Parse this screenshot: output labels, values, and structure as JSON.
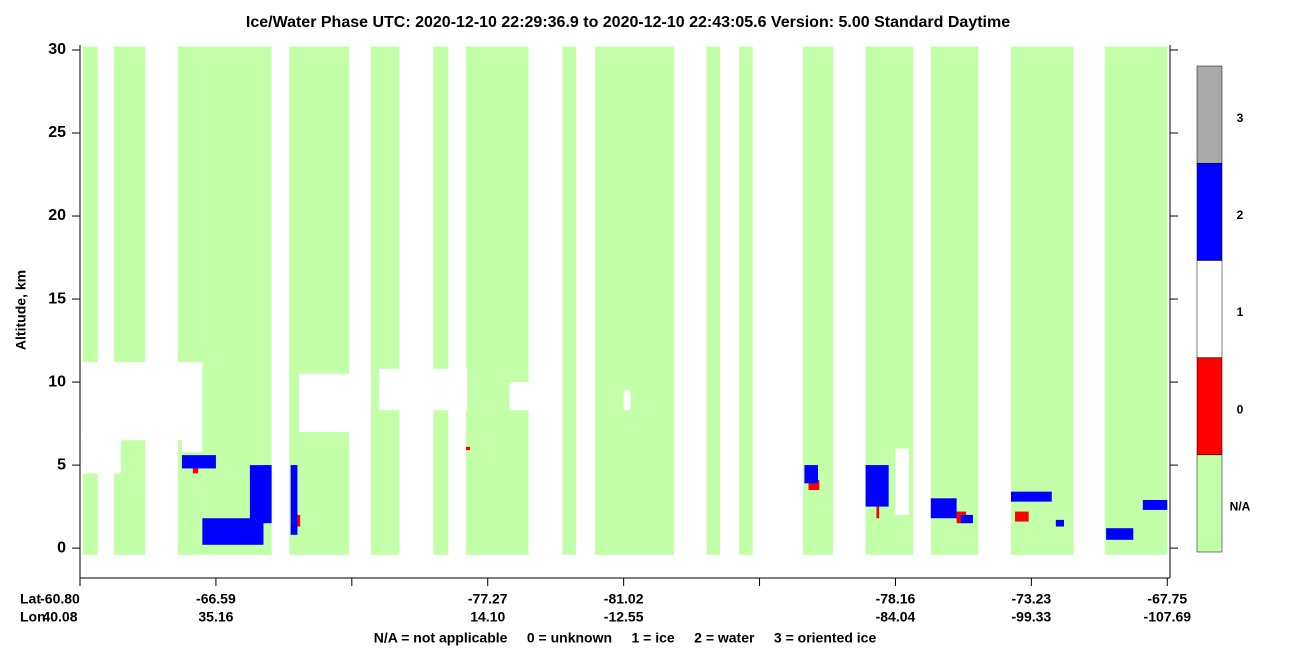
{
  "chart_data": {
    "type": "curtain",
    "title": "Ice/Water Phase    UTC:  2020-12-10    22:29:36.9  to  2020-12-10    22:43:05.6    Version: 5.00  Standard Daytime",
    "y_label": "Altitude, km",
    "ylim": [
      -1.8,
      30.3
    ],
    "yticks": [
      0,
      5,
      10,
      15,
      20,
      25,
      30
    ],
    "xlim": [
      0,
      8.02
    ],
    "xticks": [
      0,
      1,
      2,
      3,
      4,
      5,
      6,
      7,
      8
    ],
    "lat_label": "Lat",
    "lon_label": "Lon",
    "lat": [
      "-60.80",
      "-66.59",
      null,
      "-77.27",
      "-81.02",
      null,
      "-78.16",
      "-73.23",
      "-67.75"
    ],
    "lon": [
      "40.08",
      "35.16",
      null,
      "14.10",
      "-12.55",
      null,
      "-84.04",
      "-99.33",
      "-107.69"
    ],
    "footnote": "N/A = not applicable     0 = unknown     1 = ice     2 = water     3 = oriented ice",
    "series": [
      {
        "name": "N/A",
        "color": "#c2ffa8",
        "rects": [
          [
            0.02,
            0.13,
            -0.4,
            30.2
          ],
          [
            0.25,
            0.48,
            -0.4,
            30.2
          ],
          [
            0.72,
            1.41,
            -0.4,
            30.2
          ],
          [
            1.54,
            1.98,
            -0.4,
            30.2
          ],
          [
            2.14,
            2.35,
            -0.4,
            30.2
          ],
          [
            2.6,
            2.71,
            -0.4,
            30.2
          ],
          [
            2.84,
            3.3,
            -0.4,
            30.2
          ],
          [
            3.55,
            3.65,
            -0.4,
            30.2
          ],
          [
            3.79,
            4.37,
            -0.4,
            30.2
          ],
          [
            4.61,
            4.71,
            -0.4,
            30.2
          ],
          [
            4.85,
            4.95,
            -0.4,
            30.2
          ],
          [
            5.32,
            5.54,
            -0.4,
            30.2
          ],
          [
            5.78,
            6.13,
            -0.4,
            30.2
          ],
          [
            6.26,
            6.61,
            -0.4,
            30.2
          ],
          [
            6.85,
            7.31,
            -0.4,
            30.2
          ],
          [
            7.54,
            8.0,
            -0.4,
            30.2
          ]
        ]
      },
      {
        "name": "0",
        "color": "#ff0000",
        "rects": [
          [
            0.83,
            0.87,
            4.5,
            5.2
          ],
          [
            1.58,
            1.62,
            1.3,
            2.0
          ],
          [
            5.36,
            5.44,
            3.5,
            4.1
          ],
          [
            5.86,
            5.88,
            1.8,
            2.5
          ],
          [
            6.45,
            6.52,
            1.5,
            2.2
          ],
          [
            6.88,
            6.98,
            1.6,
            2.2
          ],
          [
            2.84,
            2.87,
            5.9,
            6.1
          ]
        ]
      },
      {
        "name": "1",
        "color": "#ffffff",
        "rects": [
          [
            0.02,
            0.9,
            6.5,
            11.2
          ],
          [
            0.02,
            0.3,
            4.5,
            7.0
          ],
          [
            0.75,
            0.9,
            5.8,
            7.0
          ],
          [
            1.61,
            2.14,
            7.0,
            10.5
          ],
          [
            2.2,
            2.85,
            8.3,
            10.8
          ],
          [
            3.16,
            3.35,
            8.3,
            10.0
          ],
          [
            4.0,
            4.05,
            8.3,
            9.5
          ],
          [
            6.0,
            6.1,
            2.0,
            6.0
          ]
        ]
      },
      {
        "name": "2",
        "color": "#0000ff",
        "rects": [
          [
            0.75,
            1.0,
            4.8,
            5.6
          ],
          [
            0.9,
            1.35,
            0.2,
            1.8
          ],
          [
            1.25,
            1.41,
            1.5,
            5.0
          ],
          [
            1.55,
            1.6,
            0.8,
            5.0
          ],
          [
            5.33,
            5.43,
            3.9,
            5.0
          ],
          [
            5.78,
            5.95,
            2.5,
            5.0
          ],
          [
            6.26,
            6.45,
            1.8,
            3.0
          ],
          [
            6.48,
            6.57,
            1.5,
            2.0
          ],
          [
            6.85,
            7.15,
            2.8,
            3.4
          ],
          [
            7.18,
            7.24,
            1.3,
            1.7
          ],
          [
            7.55,
            7.75,
            0.5,
            1.2
          ],
          [
            7.82,
            8.0,
            2.3,
            2.9
          ]
        ]
      },
      {
        "name": "3",
        "color": "#aaaaaa",
        "rects": []
      }
    ]
  }
}
